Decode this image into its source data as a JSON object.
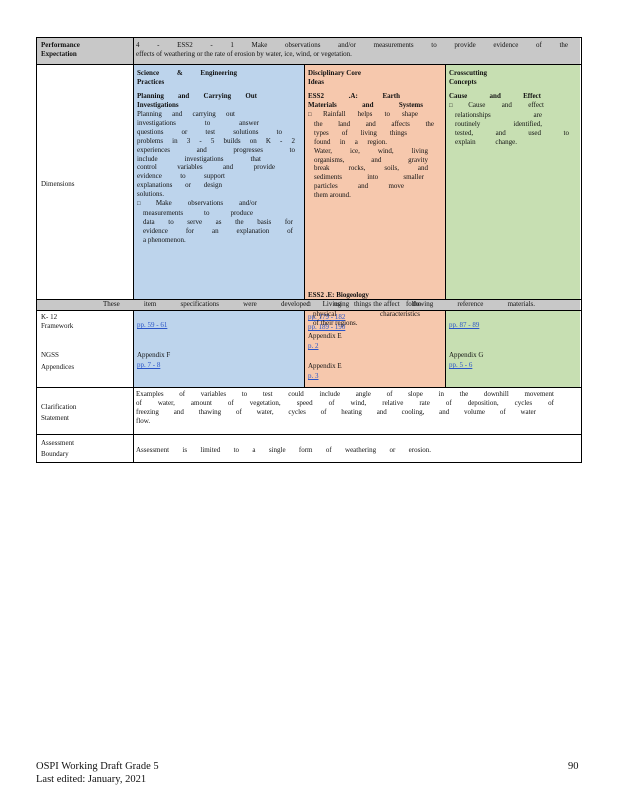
{
  "colors": {
    "grey": "#c8c8c8",
    "blue": "#bdd4ec",
    "orange": "#f6c8ad",
    "green": "#c7dfb2",
    "link": "#2a55c8"
  },
  "perf": {
    "label": "Performance Expectation",
    "line1": "4 - ESS2 - 1 Make observations and/or measurements to provide evidence of the",
    "line2": "effects of weathering or the rate of erosion by water, ice, wind, or vegetation."
  },
  "dimensions": {
    "label": "Dimensions",
    "sep": {
      "heading": [
        "Science & Engineering",
        "Practices"
      ],
      "sub": [
        "Planning and Carrying Out",
        "Investigations"
      ],
      "lines": [
        "Planning and carrying out",
        "investigations to answer",
        "questions or test solutions to",
        "problems in 3 - 5 builds on K - 2",
        "experiences and progresses to",
        "include investigations that",
        "control variables and provide",
        "evidence to support",
        "explanations or design",
        "solutions."
      ],
      "bullet_lines": [
        "Make observations and/or",
        "measurements to produce",
        "data to serve as the basis for",
        "evidence for an explanation of",
        "a phenomenon."
      ]
    },
    "dci": {
      "heading": [
        "Disciplinary Core",
        "Ideas"
      ],
      "sub1": [
        "ESS2 .A: Earth",
        "Materials and Systems"
      ],
      "lines1": [
        "Rainfall helps to shape",
        "the land and affects the",
        "types of living things",
        "found in a region.",
        "Water, ice, wind, living",
        "organisms, and gravity",
        "break rocks, soils, and",
        "sediments into smaller",
        "particles and move",
        "them around."
      ],
      "sub2": "ESS2 .E: Biogeology",
      "lines2": [
        "Living things affect the",
        "physical characteristics",
        "of their regions."
      ]
    },
    "ccc": {
      "heading": [
        "Crosscutting",
        "Concepts"
      ],
      "sub": "Cause and Effect",
      "lines": [
        "Cause and effect",
        "relationships are",
        "routinely identified,",
        "tested, and used to",
        "explain change."
      ]
    }
  },
  "specs": "These item specifications were developed using the following reference materials.",
  "refs": {
    "k12_label": [
      "K- 12",
      "Framework"
    ],
    "ngss_label": [
      "NGSS",
      "Appendices"
    ],
    "sep_pp": "pp. 59 - 61",
    "sep_app": "Appendix F",
    "sep_app_pp": "pp. 7 - 8",
    "dci_pp1": "pp. 179 - 182",
    "dci_pp2": "pp. 189 - 190",
    "dci_app1": "Appendix E",
    "dci_p1": "p. 2",
    "dci_app2": "Appendix E",
    "dci_p2": "p. 3",
    "ccc_pp": "pp. 87 - 89",
    "ccc_app": "Appendix G",
    "ccc_app_pp": "pp. 5 - 6"
  },
  "clarification": {
    "label": [
      "Clarification",
      "Statement"
    ],
    "lines": [
      "Examples of variables to test could include angle of slope in the downhill movement",
      "of water, amount of vegetation, speed of wind, relative rate of deposition, cycles of",
      "freezing and thawing of water, cycles of heating and cooling, and volume of water",
      "flow."
    ]
  },
  "assessment": {
    "label": [
      "Assessment",
      "Boundary"
    ],
    "text": "Assessment is limited to a single form of weathering or erosion."
  },
  "footer": {
    "doc": "OSPI Working Draft Grade 5",
    "edited": "Last edited: January, 2021",
    "page": "90"
  }
}
